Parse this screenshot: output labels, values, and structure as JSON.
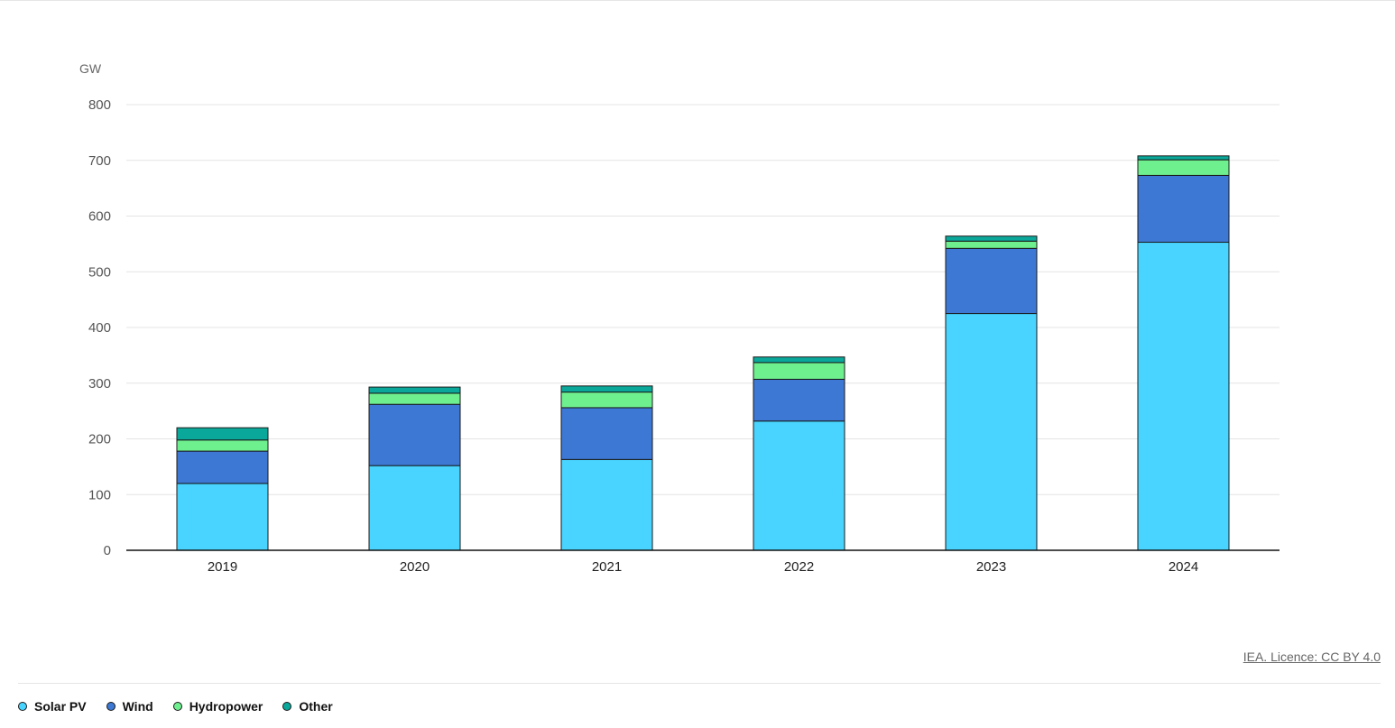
{
  "chart_data": {
    "type": "bar",
    "stacked": true,
    "unit": "GW",
    "categories": [
      "2019",
      "2020",
      "2021",
      "2022",
      "2023",
      "2024"
    ],
    "series": [
      {
        "name": "Solar PV",
        "color": "#48d4ff",
        "values": [
          120,
          152,
          163,
          232,
          425,
          553
        ]
      },
      {
        "name": "Wind",
        "color": "#3c78d4",
        "values": [
          58,
          110,
          93,
          75,
          117,
          120
        ]
      },
      {
        "name": "Hydropower",
        "color": "#6ff08f",
        "values": [
          20,
          20,
          28,
          30,
          13,
          28
        ]
      },
      {
        "name": "Other",
        "color": "#0aa89a",
        "values": [
          22,
          11,
          11,
          10,
          9,
          7
        ]
      }
    ],
    "ylim": [
      0,
      800
    ],
    "yticks": [
      0,
      100,
      200,
      300,
      400,
      500,
      600,
      700,
      800
    ],
    "grid": true,
    "legend_position": "bottom-left"
  },
  "source": {
    "license_text": "IEA. Licence: CC BY 4.0"
  }
}
